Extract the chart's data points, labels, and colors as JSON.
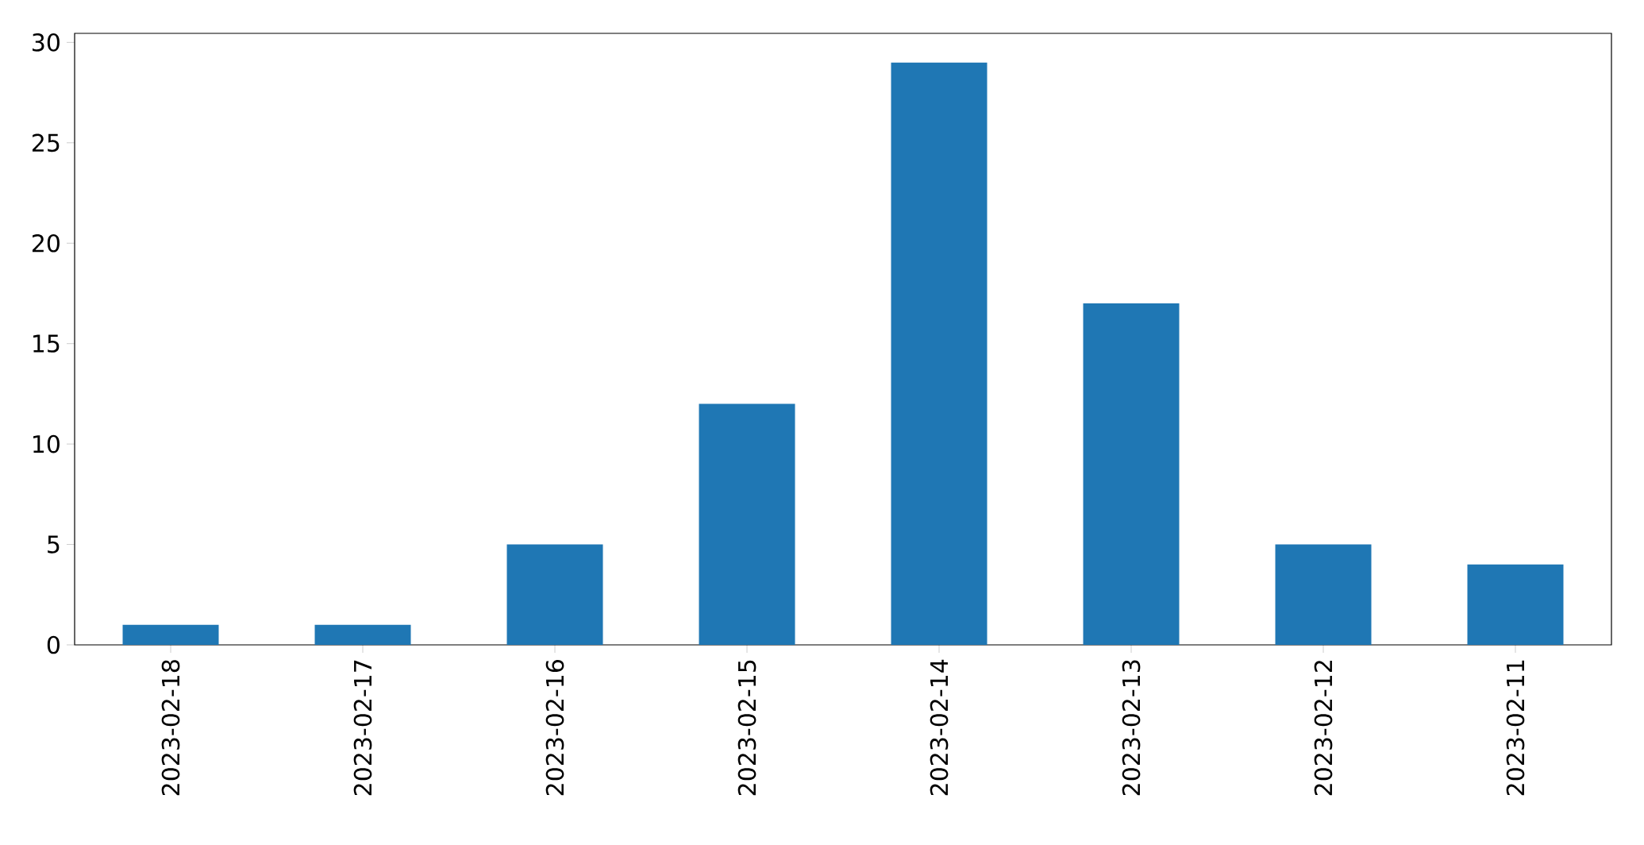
{
  "chart_data": {
    "type": "bar",
    "categories": [
      "2023-02-18",
      "2023-02-17",
      "2023-02-16",
      "2023-02-15",
      "2023-02-14",
      "2023-02-13",
      "2023-02-12",
      "2023-02-11"
    ],
    "values": [
      1,
      1,
      5,
      12,
      29,
      17,
      5,
      4
    ],
    "color": "#1f77b4",
    "ylim": [
      0,
      30.45
    ],
    "yticks": [
      0,
      5,
      10,
      15,
      20,
      25,
      30
    ]
  }
}
